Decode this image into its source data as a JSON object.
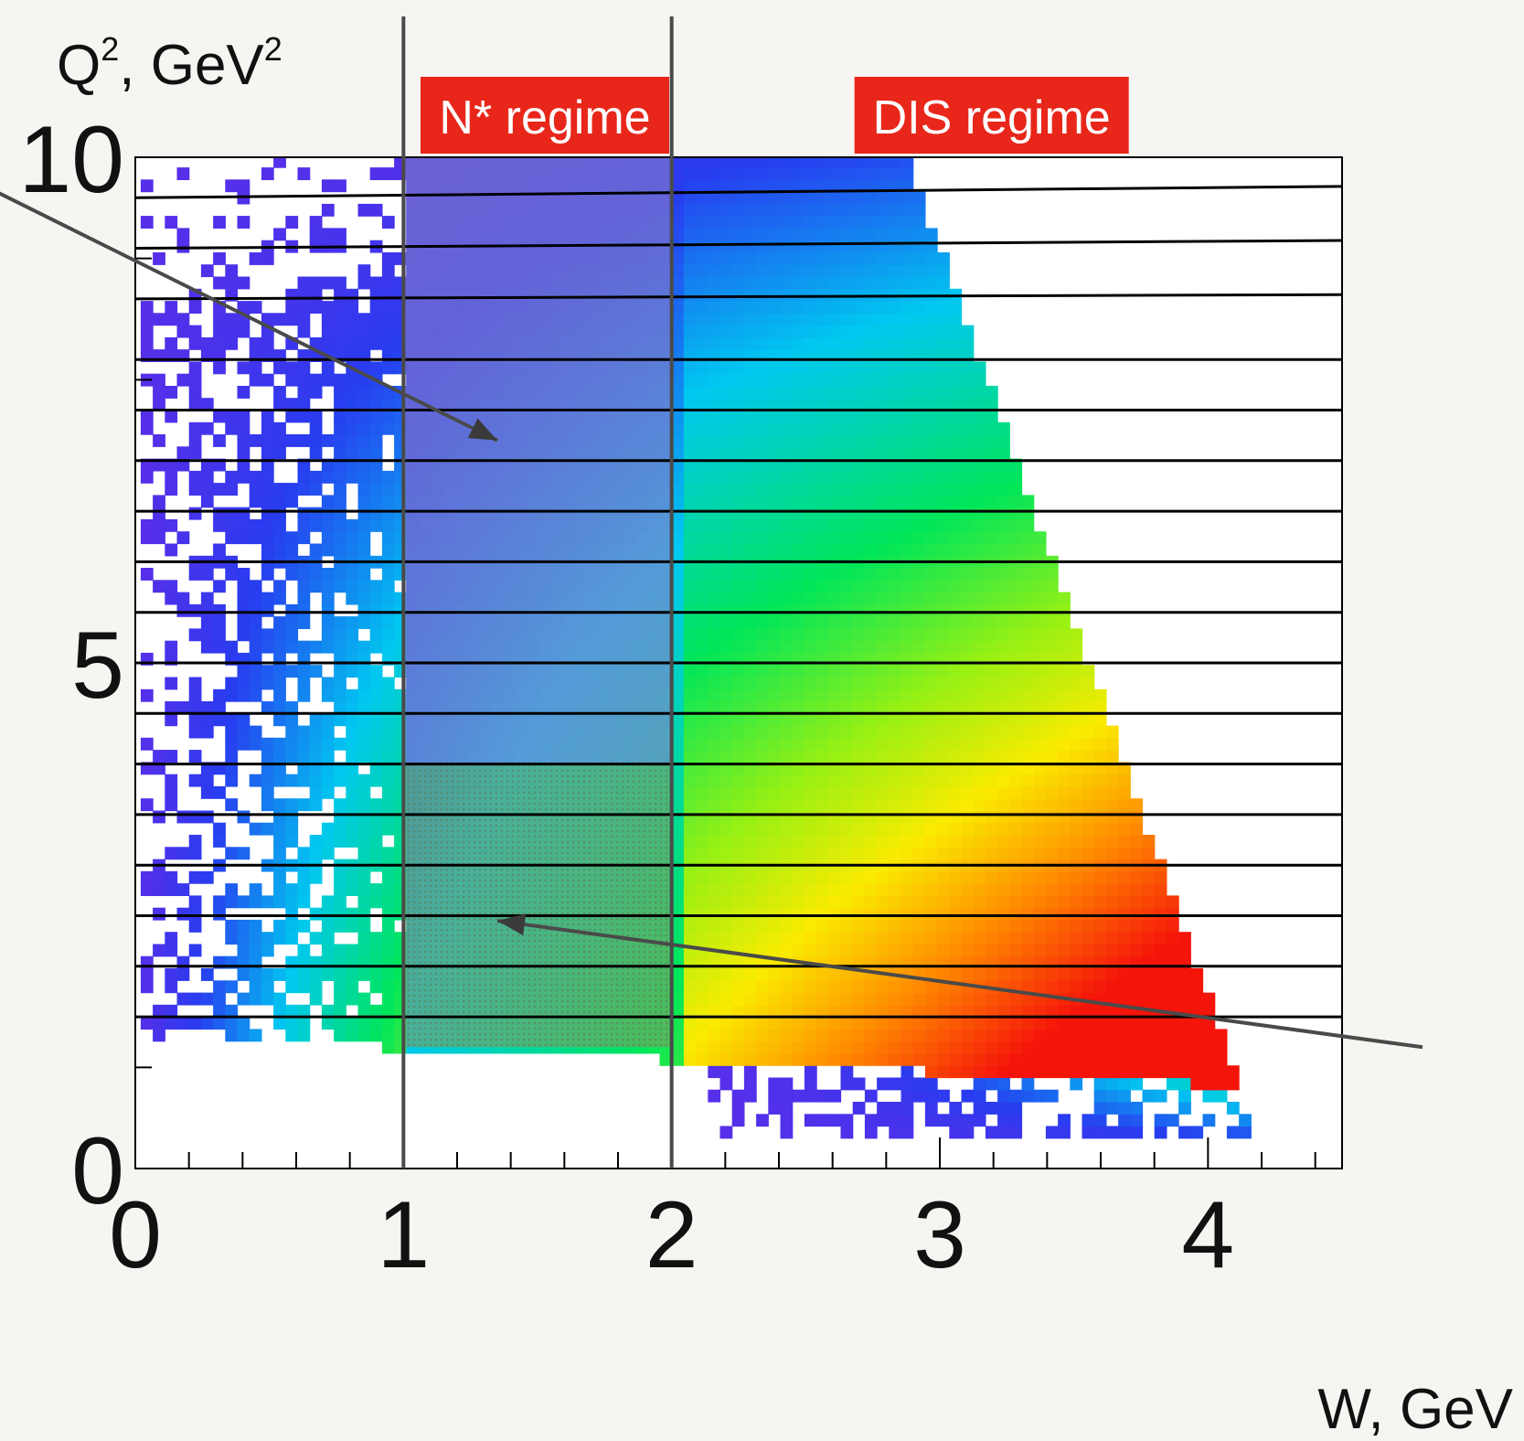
{
  "chart_data": {
    "type": "heatmap",
    "xlabel": "W, GeV",
    "ylabel_main": "Q",
    "ylabel_sup": "2",
    "ylabel_rest": ", GeV",
    "ylabel_unit_sup": "2",
    "xlim": [
      0,
      4.5
    ],
    "ylim": [
      0,
      10
    ],
    "x_ticks": [
      0,
      1,
      2,
      3,
      4
    ],
    "y_ticks": [
      0,
      5,
      10
    ],
    "x_minor_step": 0.2,
    "y_minor_ticks": [
      1,
      7.8,
      9
    ],
    "regime_boundaries": [
      1,
      2
    ],
    "regimes": [
      {
        "label": "N* regime",
        "color": "#e8261a",
        "x_center": 1.5
      },
      {
        "label": "DIS regime",
        "color": "#e8261a",
        "x_center": 3.2
      }
    ],
    "q2_bin_edges": [
      1.5,
      2.0,
      2.5,
      3.0,
      3.5,
      4.0,
      4.5,
      5.0,
      5.5,
      6.0,
      6.5,
      7.0,
      7.5,
      8.0,
      8.6,
      9.1,
      9.6
    ],
    "highlight_boxes": [
      {
        "name": "upper-nstar-box",
        "x": [
          1,
          2
        ],
        "y": [
          4,
          10
        ],
        "color": "#8a7fc8"
      },
      {
        "name": "lower-nstar-box",
        "x": [
          1,
          2
        ],
        "y": [
          1.2,
          4
        ],
        "color": "#7aa060"
      }
    ],
    "arrows": [
      {
        "name": "upper-arrow",
        "from": [
          -0.55,
          9.7
        ],
        "to": [
          1.35,
          7.2
        ]
      },
      {
        "name": "lower-arrow",
        "from": [
          4.8,
          1.2
        ],
        "to": [
          1.35,
          2.45
        ]
      }
    ],
    "kinematic_edge": {
      "x_at_q2_10": 2.85,
      "x_at_q2_0": 4.2
    }
  }
}
